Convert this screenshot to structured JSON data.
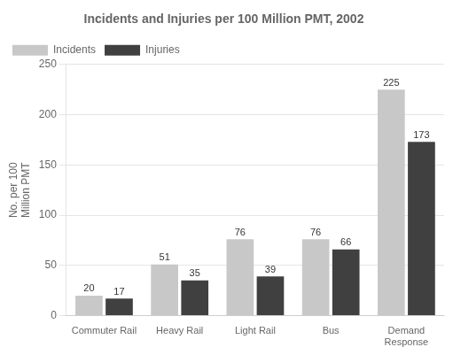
{
  "chart_data": {
    "type": "bar",
    "title": "Incidents and Injuries per 100 Million PMT, 2002",
    "ylabel": "No. per 100\nMillion PMT",
    "categories": [
      "Commuter Rail",
      "Heavy Rail",
      "Light Rail",
      "Bus",
      "Demand\nResponse"
    ],
    "series": [
      {
        "name": "Incidents",
        "color": "#c8c8c8",
        "values": [
          20,
          51,
          76,
          76,
          225
        ]
      },
      {
        "name": "Injuries",
        "color": "#404040",
        "values": [
          17,
          35,
          39,
          66,
          173
        ]
      }
    ],
    "ylim": [
      0,
      250
    ],
    "yticks": [
      0,
      50,
      100,
      150,
      200,
      250
    ],
    "grid": true,
    "legend": "upper left",
    "data_labels": true
  }
}
